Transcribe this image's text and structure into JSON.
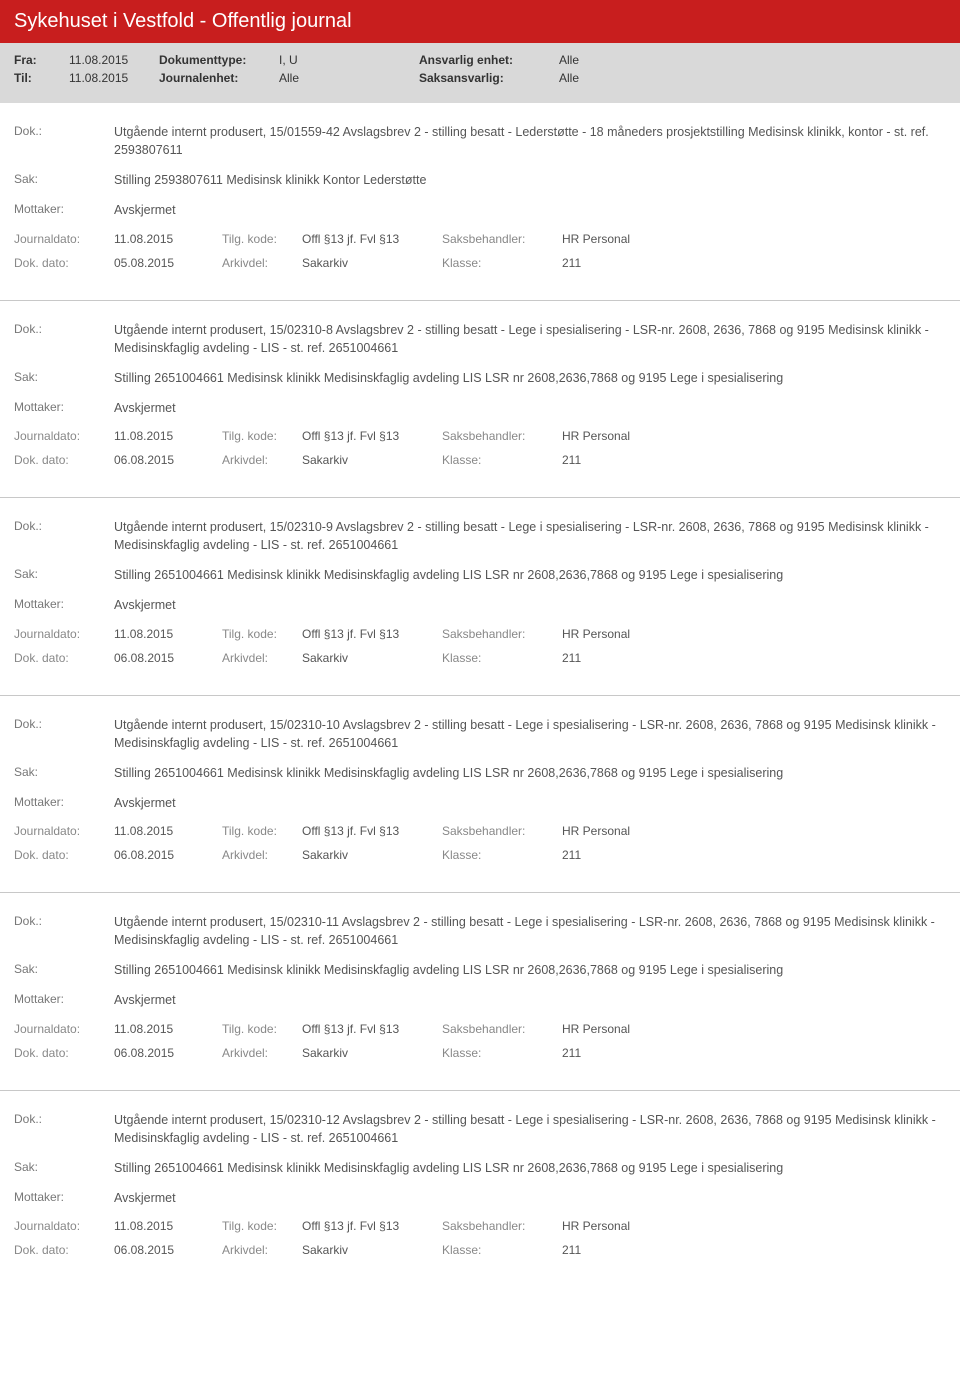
{
  "header": {
    "title": "Sykehuset i Vestfold - Offentlig journal"
  },
  "meta": {
    "fra_label": "Fra:",
    "fra": "11.08.2015",
    "til_label": "Til:",
    "til": "11.08.2015",
    "doktype_label": "Dokumenttype:",
    "doktype": "I, U",
    "journalenhet_label": "Journalenhet:",
    "journalenhet": "Alle",
    "ansvarlig_label": "Ansvarlig enhet:",
    "ansvarlig": "Alle",
    "saksansvarlig_label": "Saksansvarlig:",
    "saksansvarlig": "Alle"
  },
  "labels": {
    "dok": "Dok.:",
    "sak": "Sak:",
    "mottaker": "Mottaker:",
    "journaldato": "Journaldato:",
    "tilgkode": "Tilg. kode:",
    "saksbehandler": "Saksbehandler:",
    "dokdato": "Dok. dato:",
    "arkivdel": "Arkivdel:",
    "klasse": "Klasse:"
  },
  "entries": [
    {
      "dok": "Utgående internt produsert, 15/01559-42 Avslagsbrev 2 - stilling besatt - Lederstøtte - 18 måneders prosjektstilling Medisinsk klinikk, kontor - st. ref. 2593807611",
      "sak": "Stilling 2593807611 Medisinsk klinikk Kontor Lederstøtte",
      "mottaker": "Avskjermet",
      "journaldato": "11.08.2015",
      "tilgkode": "Offl §13 jf. Fvl §13",
      "saksbehandler": "HR Personal",
      "dokdato": "05.08.2015",
      "arkivdel": "Sakarkiv",
      "klasse": "211"
    },
    {
      "dok": "Utgående internt produsert, 15/02310-8 Avslagsbrev 2 - stilling besatt - Lege i spesialisering - LSR-nr. 2608, 2636, 7868 og 9195 Medisinsk klinikk - Medisinskfaglig avdeling - LIS - st. ref. 2651004661",
      "sak": "Stilling 2651004661 Medisinsk klinikk Medisinskfaglig avdeling LIS LSR nr 2608,2636,7868 og 9195 Lege i spesialisering",
      "mottaker": "Avskjermet",
      "journaldato": "11.08.2015",
      "tilgkode": "Offl §13 jf. Fvl §13",
      "saksbehandler": "HR Personal",
      "dokdato": "06.08.2015",
      "arkivdel": "Sakarkiv",
      "klasse": "211"
    },
    {
      "dok": "Utgående internt produsert, 15/02310-9 Avslagsbrev 2 - stilling besatt - Lege i spesialisering - LSR-nr. 2608, 2636, 7868 og 9195 Medisinsk klinikk - Medisinskfaglig avdeling - LIS - st. ref. 2651004661",
      "sak": "Stilling 2651004661 Medisinsk klinikk Medisinskfaglig avdeling LIS LSR nr 2608,2636,7868 og 9195 Lege i spesialisering",
      "mottaker": "Avskjermet",
      "journaldato": "11.08.2015",
      "tilgkode": "Offl §13 jf. Fvl §13",
      "saksbehandler": "HR Personal",
      "dokdato": "06.08.2015",
      "arkivdel": "Sakarkiv",
      "klasse": "211"
    },
    {
      "dok": "Utgående internt produsert, 15/02310-10 Avslagsbrev 2 - stilling besatt - Lege i spesialisering - LSR-nr. 2608, 2636, 7868 og 9195 Medisinsk klinikk - Medisinskfaglig avdeling - LIS - st. ref. 2651004661",
      "sak": "Stilling 2651004661 Medisinsk klinikk Medisinskfaglig avdeling LIS LSR nr 2608,2636,7868 og 9195 Lege i spesialisering",
      "mottaker": "Avskjermet",
      "journaldato": "11.08.2015",
      "tilgkode": "Offl §13 jf. Fvl §13",
      "saksbehandler": "HR Personal",
      "dokdato": "06.08.2015",
      "arkivdel": "Sakarkiv",
      "klasse": "211"
    },
    {
      "dok": "Utgående internt produsert, 15/02310-11 Avslagsbrev 2 - stilling besatt - Lege i spesialisering - LSR-nr. 2608, 2636, 7868 og 9195 Medisinsk klinikk - Medisinskfaglig avdeling - LIS - st. ref. 2651004661",
      "sak": "Stilling 2651004661 Medisinsk klinikk Medisinskfaglig avdeling LIS LSR nr 2608,2636,7868 og 9195 Lege i spesialisering",
      "mottaker": "Avskjermet",
      "journaldato": "11.08.2015",
      "tilgkode": "Offl §13 jf. Fvl §13",
      "saksbehandler": "HR Personal",
      "dokdato": "06.08.2015",
      "arkivdel": "Sakarkiv",
      "klasse": "211"
    },
    {
      "dok": "Utgående internt produsert, 15/02310-12 Avslagsbrev 2 - stilling besatt - Lege i spesialisering - LSR-nr. 2608, 2636, 7868 og 9195 Medisinsk klinikk - Medisinskfaglig avdeling - LIS - st. ref. 2651004661",
      "sak": "Stilling 2651004661 Medisinsk klinikk Medisinskfaglig avdeling LIS LSR nr 2608,2636,7868 og 9195 Lege i spesialisering",
      "mottaker": "Avskjermet",
      "journaldato": "11.08.2015",
      "tilgkode": "Offl §13 jf. Fvl §13",
      "saksbehandler": "HR Personal",
      "dokdato": "06.08.2015",
      "arkivdel": "Sakarkiv",
      "klasse": "211"
    }
  ]
}
